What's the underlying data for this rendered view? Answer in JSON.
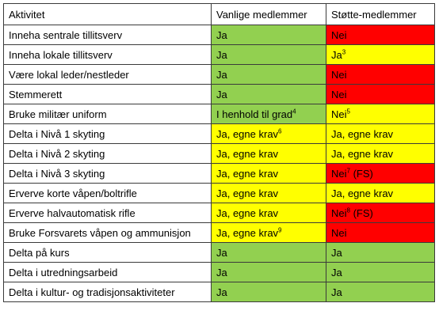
{
  "table": {
    "headers": [
      "Aktivitet",
      "Vanlige medlemmer",
      "Støtte-medlemmer"
    ],
    "rows": [
      {
        "activity": "Inneha sentrale tillitsverv",
        "regular": {
          "text": "Ja",
          "sup": "",
          "suffix": "",
          "color": "#92d050"
        },
        "support": {
          "text": "Nei",
          "sup": "",
          "suffix": "",
          "color": "#ff0000"
        }
      },
      {
        "activity": "Inneha lokale tillitsverv",
        "regular": {
          "text": "Ja",
          "sup": "",
          "suffix": "",
          "color": "#92d050"
        },
        "support": {
          "text": "Ja",
          "sup": "3",
          "suffix": "",
          "color": "#ffff00"
        }
      },
      {
        "activity": "Være lokal leder/nestleder",
        "regular": {
          "text": "Ja",
          "sup": "",
          "suffix": "",
          "color": "#92d050"
        },
        "support": {
          "text": "Nei",
          "sup": "",
          "suffix": "",
          "color": "#ff0000"
        }
      },
      {
        "activity": "Stemmerett",
        "regular": {
          "text": "Ja",
          "sup": "",
          "suffix": "",
          "color": "#92d050"
        },
        "support": {
          "text": "Nei",
          "sup": "",
          "suffix": "",
          "color": "#ff0000"
        }
      },
      {
        "activity": "Bruke militær uniform",
        "regular": {
          "text": "I henhold til grad",
          "sup": "4",
          "suffix": "",
          "color": "#92d050"
        },
        "support": {
          "text": "Nei",
          "sup": "5",
          "suffix": "",
          "color": "#ffff00"
        }
      },
      {
        "activity": "Delta i Nivå 1 skyting",
        "regular": {
          "text": "Ja, egne krav",
          "sup": "6",
          "suffix": "",
          "color": "#ffff00"
        },
        "support": {
          "text": "Ja, egne krav",
          "sup": "",
          "suffix": "",
          "color": "#ffff00"
        }
      },
      {
        "activity": "Delta i Nivå 2 skyting",
        "regular": {
          "text": "Ja, egne krav",
          "sup": "",
          "suffix": "",
          "color": "#ffff00"
        },
        "support": {
          "text": "Ja, egne krav",
          "sup": "",
          "suffix": "",
          "color": "#ffff00"
        }
      },
      {
        "activity": "Delta i Nivå 3 skyting",
        "regular": {
          "text": "Ja, egne krav",
          "sup": "",
          "suffix": "",
          "color": "#ffff00"
        },
        "support": {
          "text": "Nei",
          "sup": "7",
          "suffix": " (FS)",
          "color": "#ff0000"
        }
      },
      {
        "activity": "Erverve korte våpen/boltrifle",
        "regular": {
          "text": "Ja, egne krav",
          "sup": "",
          "suffix": "",
          "color": "#ffff00"
        },
        "support": {
          "text": "Ja, egne krav",
          "sup": "",
          "suffix": "",
          "color": "#ffff00"
        }
      },
      {
        "activity": "Erverve halvautomatisk rifle",
        "regular": {
          "text": "Ja, egne krav",
          "sup": "",
          "suffix": "",
          "color": "#ffff00"
        },
        "support": {
          "text": "Nei",
          "sup": "8",
          "suffix": " (FS)",
          "color": "#ff0000"
        }
      },
      {
        "activity": "Bruke Forsvarets våpen og ammunisjon",
        "regular": {
          "text": "Ja, egne krav",
          "sup": "9",
          "suffix": "",
          "color": "#ffff00"
        },
        "support": {
          "text": "Nei",
          "sup": "",
          "suffix": "",
          "color": "#ff0000"
        }
      },
      {
        "activity": "Delta på kurs",
        "regular": {
          "text": "Ja",
          "sup": "",
          "suffix": "",
          "color": "#92d050"
        },
        "support": {
          "text": "Ja",
          "sup": "",
          "suffix": "",
          "color": "#92d050"
        }
      },
      {
        "activity": "Delta i utredningsarbeid",
        "regular": {
          "text": "Ja",
          "sup": "",
          "suffix": "",
          "color": "#92d050"
        },
        "support": {
          "text": "Ja",
          "sup": "",
          "suffix": "",
          "color": "#92d050"
        }
      },
      {
        "activity": "Delta i kultur- og tradisjonsaktiviteter",
        "regular": {
          "text": "Ja",
          "sup": "",
          "suffix": "",
          "color": "#92d050"
        },
        "support": {
          "text": "Ja",
          "sup": "",
          "suffix": "",
          "color": "#92d050"
        }
      }
    ]
  }
}
